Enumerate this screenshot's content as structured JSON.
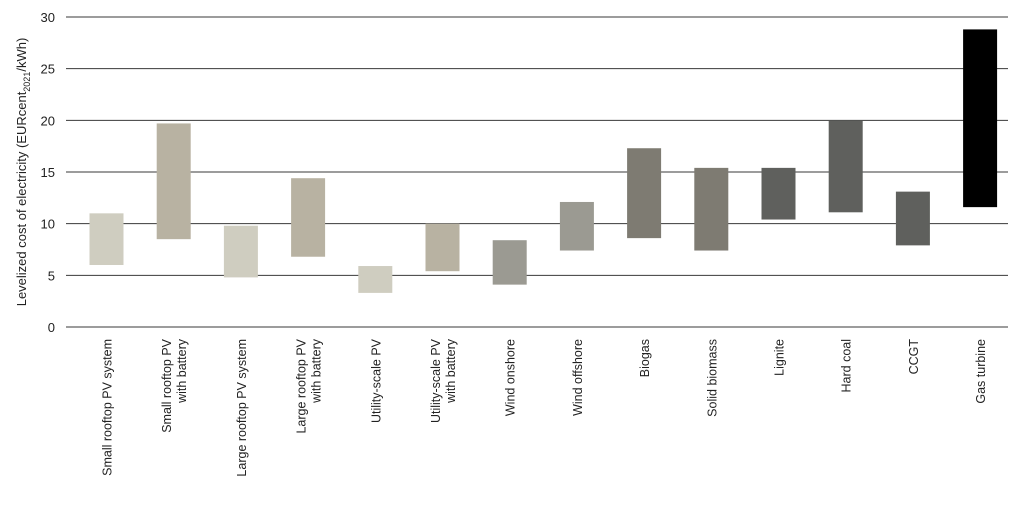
{
  "chart_data": {
    "type": "bar",
    "subtype": "floating-range",
    "ylabel_main": "Levelized cost of electricity (EURcent",
    "ylabel_sub": "2021",
    "ylabel_end": "/kWh)",
    "ylim": [
      0,
      30
    ],
    "yticks": [
      0,
      5,
      10,
      15,
      20,
      25,
      30
    ],
    "grid": true,
    "categories": [
      [
        "Small rooftop PV system"
      ],
      [
        "Small rooftop PV",
        "with battery"
      ],
      [
        "Large rooftop PV system"
      ],
      [
        "Large rooftop PV",
        "with battery"
      ],
      [
        "Utility-scale PV"
      ],
      [
        "Utility-scale PV",
        "with battery"
      ],
      [
        "Wind onshore"
      ],
      [
        "Wind offshore"
      ],
      [
        "Biogas"
      ],
      [
        "Solid biomass"
      ],
      [
        "Lignite"
      ],
      [
        "Hard coal"
      ],
      [
        "CCGT"
      ],
      [
        "Gas turbine"
      ]
    ],
    "ranges": [
      [
        6.0,
        11.0
      ],
      [
        8.5,
        19.7
      ],
      [
        4.8,
        9.8
      ],
      [
        6.8,
        14.4
      ],
      [
        3.3,
        5.9
      ],
      [
        5.4,
        10.0
      ],
      [
        4.1,
        8.4
      ],
      [
        7.4,
        12.1
      ],
      [
        8.6,
        17.3
      ],
      [
        7.4,
        15.4
      ],
      [
        10.4,
        15.4
      ],
      [
        11.1,
        20.0
      ],
      [
        7.9,
        13.1
      ],
      [
        11.6,
        28.8
      ]
    ],
    "colors": [
      "#cfcdc0",
      "#b8b2a2",
      "#cfcdc0",
      "#b8b2a2",
      "#cfcdc0",
      "#b8b2a2",
      "#9b9a92",
      "#9b9a92",
      "#7e7b72",
      "#7e7b72",
      "#5f605d",
      "#5f605d",
      "#5f605d",
      "#000000"
    ]
  }
}
